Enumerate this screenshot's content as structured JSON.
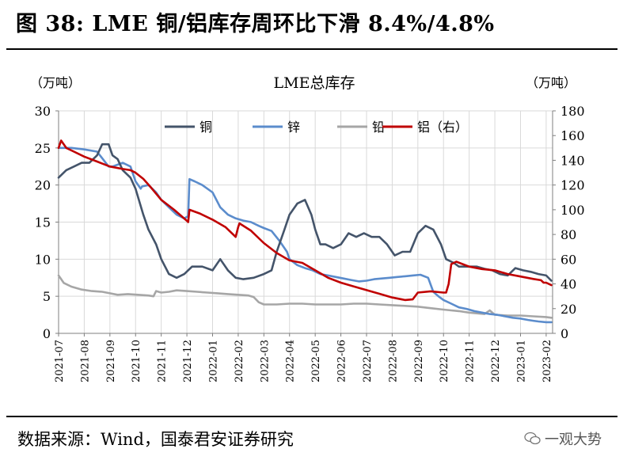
{
  "figure_title": "图 38: LME 铜/铝库存周环比下滑 8.4%/4.8%",
  "source": "数据来源：Wind，国泰君安证券研究",
  "watermark": "一观大势",
  "colors": {
    "copper": "#44546a",
    "zinc": "#5b8ccc",
    "lead": "#a6a6a6",
    "aluminum": "#c00000",
    "grid": "#d9d9d9"
  },
  "chart_data": {
    "type": "line",
    "title": "LME总库存",
    "ylabel_left": "（万吨）",
    "ylabel_right": "（万吨）",
    "ylim_left": [
      0,
      30
    ],
    "ylim_right": [
      0,
      180
    ],
    "yticks_left": [
      "0",
      "5",
      "10",
      "15",
      "20",
      "25",
      "30"
    ],
    "yticks_right": [
      "0",
      "20",
      "40",
      "60",
      "80",
      "100",
      "120",
      "140",
      "160",
      "180"
    ],
    "categories": [
      "2021-07",
      "2021-08",
      "2021-09",
      "2021-10",
      "2021-11",
      "2021-12",
      "2022-01",
      "2022-02",
      "2022-03",
      "2022-04",
      "2022-05",
      "2022-06",
      "2022-07",
      "2022-08",
      "2022-09",
      "2022-10",
      "2022-11",
      "2022-12",
      "2023-01",
      "2023-02"
    ],
    "x_range": [
      0,
      19.25
    ],
    "legend_position": "top",
    "series": [
      {
        "name": "铜",
        "axis": "left",
        "color": "#44546a",
        "x": [
          0,
          0.3,
          0.6,
          0.9,
          1.2,
          1.5,
          1.7,
          1.95,
          2.1,
          2.3,
          2.5,
          2.8,
          3.0,
          3.3,
          3.5,
          3.8,
          4.0,
          4.3,
          4.6,
          4.9,
          5.2,
          5.6,
          6.0,
          6.3,
          6.6,
          6.9,
          7.2,
          7.6,
          8.0,
          8.3,
          8.5,
          8.8,
          9.0,
          9.3,
          9.6,
          9.85,
          10.0,
          10.2,
          10.4,
          10.7,
          11.0,
          11.3,
          11.6,
          11.9,
          12.2,
          12.5,
          12.8,
          13.1,
          13.4,
          13.7,
          14.0,
          14.3,
          14.6,
          14.9,
          15.1,
          15.4,
          15.6,
          15.8,
          16.0,
          16.3,
          16.6,
          16.9,
          17.2,
          17.5,
          17.8,
          18.1,
          18.4,
          18.7,
          19.0,
          19.2
        ],
        "y": [
          21,
          22,
          22.5,
          23,
          23,
          24,
          25.5,
          25.5,
          24,
          23.5,
          22,
          21,
          19.5,
          16,
          14,
          12,
          10,
          8,
          7.5,
          8,
          9,
          9,
          8.5,
          10,
          8.5,
          7.5,
          7.3,
          7.5,
          8,
          8.5,
          11,
          14,
          16,
          17.5,
          18,
          16,
          14,
          12,
          12,
          11.5,
          12,
          13.5,
          13,
          13.5,
          13,
          13,
          12,
          10.5,
          11,
          11,
          13.5,
          14.5,
          14,
          12,
          10,
          9.5,
          9,
          9,
          9,
          9,
          8.7,
          8.5,
          8,
          7.8,
          8.8,
          8.5,
          8.3,
          8,
          7.8,
          7.1
        ]
      },
      {
        "name": "锌",
        "axis": "left",
        "color": "#5b8ccc",
        "x": [
          0,
          0.5,
          1.0,
          1.5,
          1.95,
          2.1,
          2.5,
          2.8,
          3.0,
          3.2,
          3.25,
          3.5,
          3.8,
          4.0,
          4.3,
          4.6,
          4.9,
          5.05,
          5.1,
          5.3,
          5.6,
          6.0,
          6.3,
          6.6,
          6.9,
          7.2,
          7.5,
          7.8,
          8.0,
          8.3,
          8.6,
          8.9,
          9.0,
          9.3,
          9.6,
          9.9,
          10.2,
          10.5,
          10.8,
          11.1,
          11.4,
          11.7,
          12.0,
          12.3,
          12.6,
          12.9,
          13.2,
          13.5,
          13.8,
          14.1,
          14.4,
          14.6,
          14.8,
          15.0,
          15.3,
          15.6,
          15.9,
          16.2,
          16.5,
          16.8,
          17.1,
          17.4,
          17.7,
          18.0,
          18.3,
          18.5,
          18.7,
          19.0,
          19.2
        ],
        "y": [
          25,
          25,
          24.8,
          24.5,
          22.5,
          22.5,
          23,
          22.5,
          20.5,
          19.5,
          19.8,
          20,
          19,
          18,
          17,
          16,
          15.5,
          15.8,
          20.8,
          20.5,
          20,
          19,
          17,
          16,
          15.5,
          15.2,
          15,
          14.5,
          14.2,
          13.8,
          12.5,
          11,
          10,
          9.2,
          8.8,
          8.5,
          8,
          7.8,
          7.6,
          7.4,
          7.2,
          7,
          7.1,
          7.3,
          7.4,
          7.5,
          7.6,
          7.7,
          7.8,
          7.9,
          7.5,
          5.6,
          5,
          4.5,
          4,
          3.5,
          3.3,
          3,
          2.8,
          2.6,
          2.5,
          2.3,
          2.1,
          2.0,
          1.8,
          1.7,
          1.6,
          1.5,
          1.5
        ]
      },
      {
        "name": "铅",
        "axis": "left",
        "color": "#a6a6a6",
        "x": [
          0,
          0.2,
          0.5,
          0.9,
          1.3,
          1.7,
          2.0,
          2.3,
          2.7,
          3.1,
          3.5,
          3.7,
          3.8,
          4.0,
          4.3,
          4.6,
          5.0,
          5.4,
          5.8,
          6.2,
          6.6,
          7.0,
          7.4,
          7.6,
          7.8,
          8.0,
          8.5,
          9.0,
          9.5,
          10.0,
          10.5,
          11.0,
          11.5,
          12.0,
          12.5,
          13.0,
          13.5,
          14.0,
          14.5,
          15.0,
          15.3,
          15.6,
          16.0,
          16.3,
          16.6,
          16.8,
          17.0,
          17.5,
          18.0,
          18.5,
          19.0,
          19.2
        ],
        "y": [
          7.8,
          6.8,
          6.3,
          5.9,
          5.7,
          5.6,
          5.4,
          5.2,
          5.3,
          5.2,
          5.1,
          5.0,
          5.7,
          5.5,
          5.6,
          5.8,
          5.7,
          5.6,
          5.5,
          5.4,
          5.3,
          5.2,
          5.1,
          4.9,
          4.2,
          3.9,
          3.9,
          4.0,
          4.0,
          3.9,
          3.9,
          3.9,
          4.0,
          4.0,
          3.9,
          3.8,
          3.7,
          3.6,
          3.4,
          3.2,
          3.1,
          3.0,
          2.8,
          2.7,
          2.6,
          3.1,
          2.5,
          2.4,
          2.4,
          2.3,
          2.2,
          2.1
        ]
      },
      {
        "name": "铝（右）",
        "axis": "right",
        "color": "#c00000",
        "x": [
          0,
          0.1,
          0.3,
          0.6,
          1.0,
          1.5,
          2.0,
          2.5,
          2.8,
          3.0,
          3.3,
          3.6,
          4.0,
          4.5,
          5.0,
          5.05,
          5.1,
          5.5,
          6.0,
          6.5,
          6.9,
          7.0,
          7.05,
          7.5,
          8.0,
          8.5,
          9.0,
          9.5,
          10.0,
          10.5,
          11.0,
          11.5,
          12.0,
          12.5,
          13.0,
          13.5,
          13.8,
          14.0,
          14.5,
          15.0,
          15.1,
          15.2,
          15.3,
          15.5,
          16.0,
          16.5,
          17.0,
          17.5,
          18.0,
          18.5,
          18.8,
          18.9,
          19.0,
          19.2
        ],
        "y": [
          150,
          156,
          150,
          147,
          143,
          139,
          135,
          133,
          132,
          130,
          125,
          118,
          108,
          100,
          91,
          90,
          100,
          97,
          92,
          86,
          78,
          86,
          89,
          83,
          73,
          65,
          59,
          57,
          51,
          45,
          41,
          38,
          35,
          32,
          29,
          27,
          27.5,
          33,
          34,
          33,
          33,
          40,
          56,
          58,
          54,
          52,
          51,
          48,
          46,
          44,
          43,
          41,
          41,
          39
        ]
      }
    ]
  }
}
